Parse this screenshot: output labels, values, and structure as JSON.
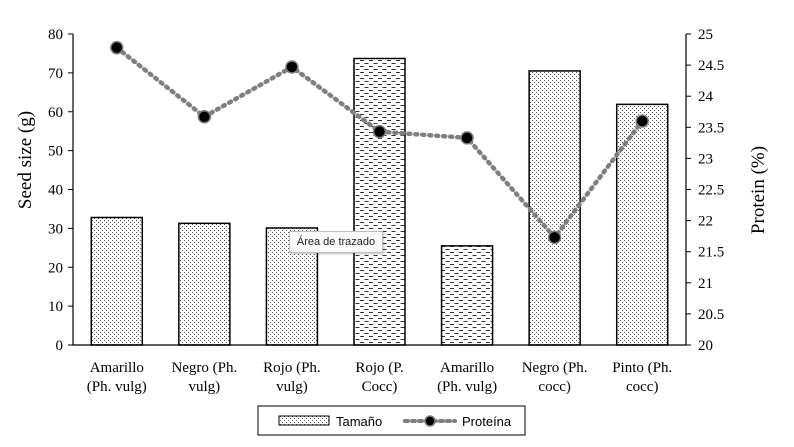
{
  "chart_data": {
    "type": "bar",
    "categories": [
      [
        "Amarillo",
        "(Ph. vulg)"
      ],
      [
        "Negro (Ph.",
        "vulg)"
      ],
      [
        "Rojo (Ph.",
        "vulg)"
      ],
      [
        "Rojo (P.",
        "Cocc)"
      ],
      [
        "Amarillo",
        "(Ph. vulg)"
      ],
      [
        "Negro (Ph.",
        "cocc)"
      ],
      [
        "Pinto (Ph.",
        "cocc)"
      ]
    ],
    "series": [
      {
        "name": "Tamaño",
        "type": "bar",
        "axis": "left",
        "values": [
          32.8,
          31.3,
          30.1,
          73.7,
          25.5,
          70.5,
          61.9
        ],
        "patterns": [
          "dots",
          "dots",
          "dots",
          "dashes",
          "dashes",
          "dots",
          "dots"
        ]
      },
      {
        "name": "Proteína",
        "type": "line",
        "axis": "right",
        "values": [
          24.78,
          23.67,
          24.47,
          23.43,
          23.33,
          21.73,
          23.6
        ]
      }
    ],
    "ylabel": "Seed size (g)",
    "ylabel_right": "Protein (%)",
    "ylim": [
      0,
      80
    ],
    "y_ticks": [
      "0",
      "10",
      "20",
      "30",
      "40",
      "50",
      "60",
      "70",
      "80"
    ],
    "ylim_right": [
      20,
      25
    ],
    "y_ticks_right": [
      "20",
      "20.5",
      "21",
      "21.5",
      "22",
      "22.5",
      "23",
      "23.5",
      "24",
      "24.5",
      "25"
    ],
    "grid": false,
    "legend_position": "bottom",
    "colors": {
      "bar_fill": "#ffffff",
      "bar_stroke": "#000000",
      "line": "#7f7f7f",
      "marker": "#000000"
    }
  },
  "tooltip": {
    "text": "Área de trazado"
  }
}
